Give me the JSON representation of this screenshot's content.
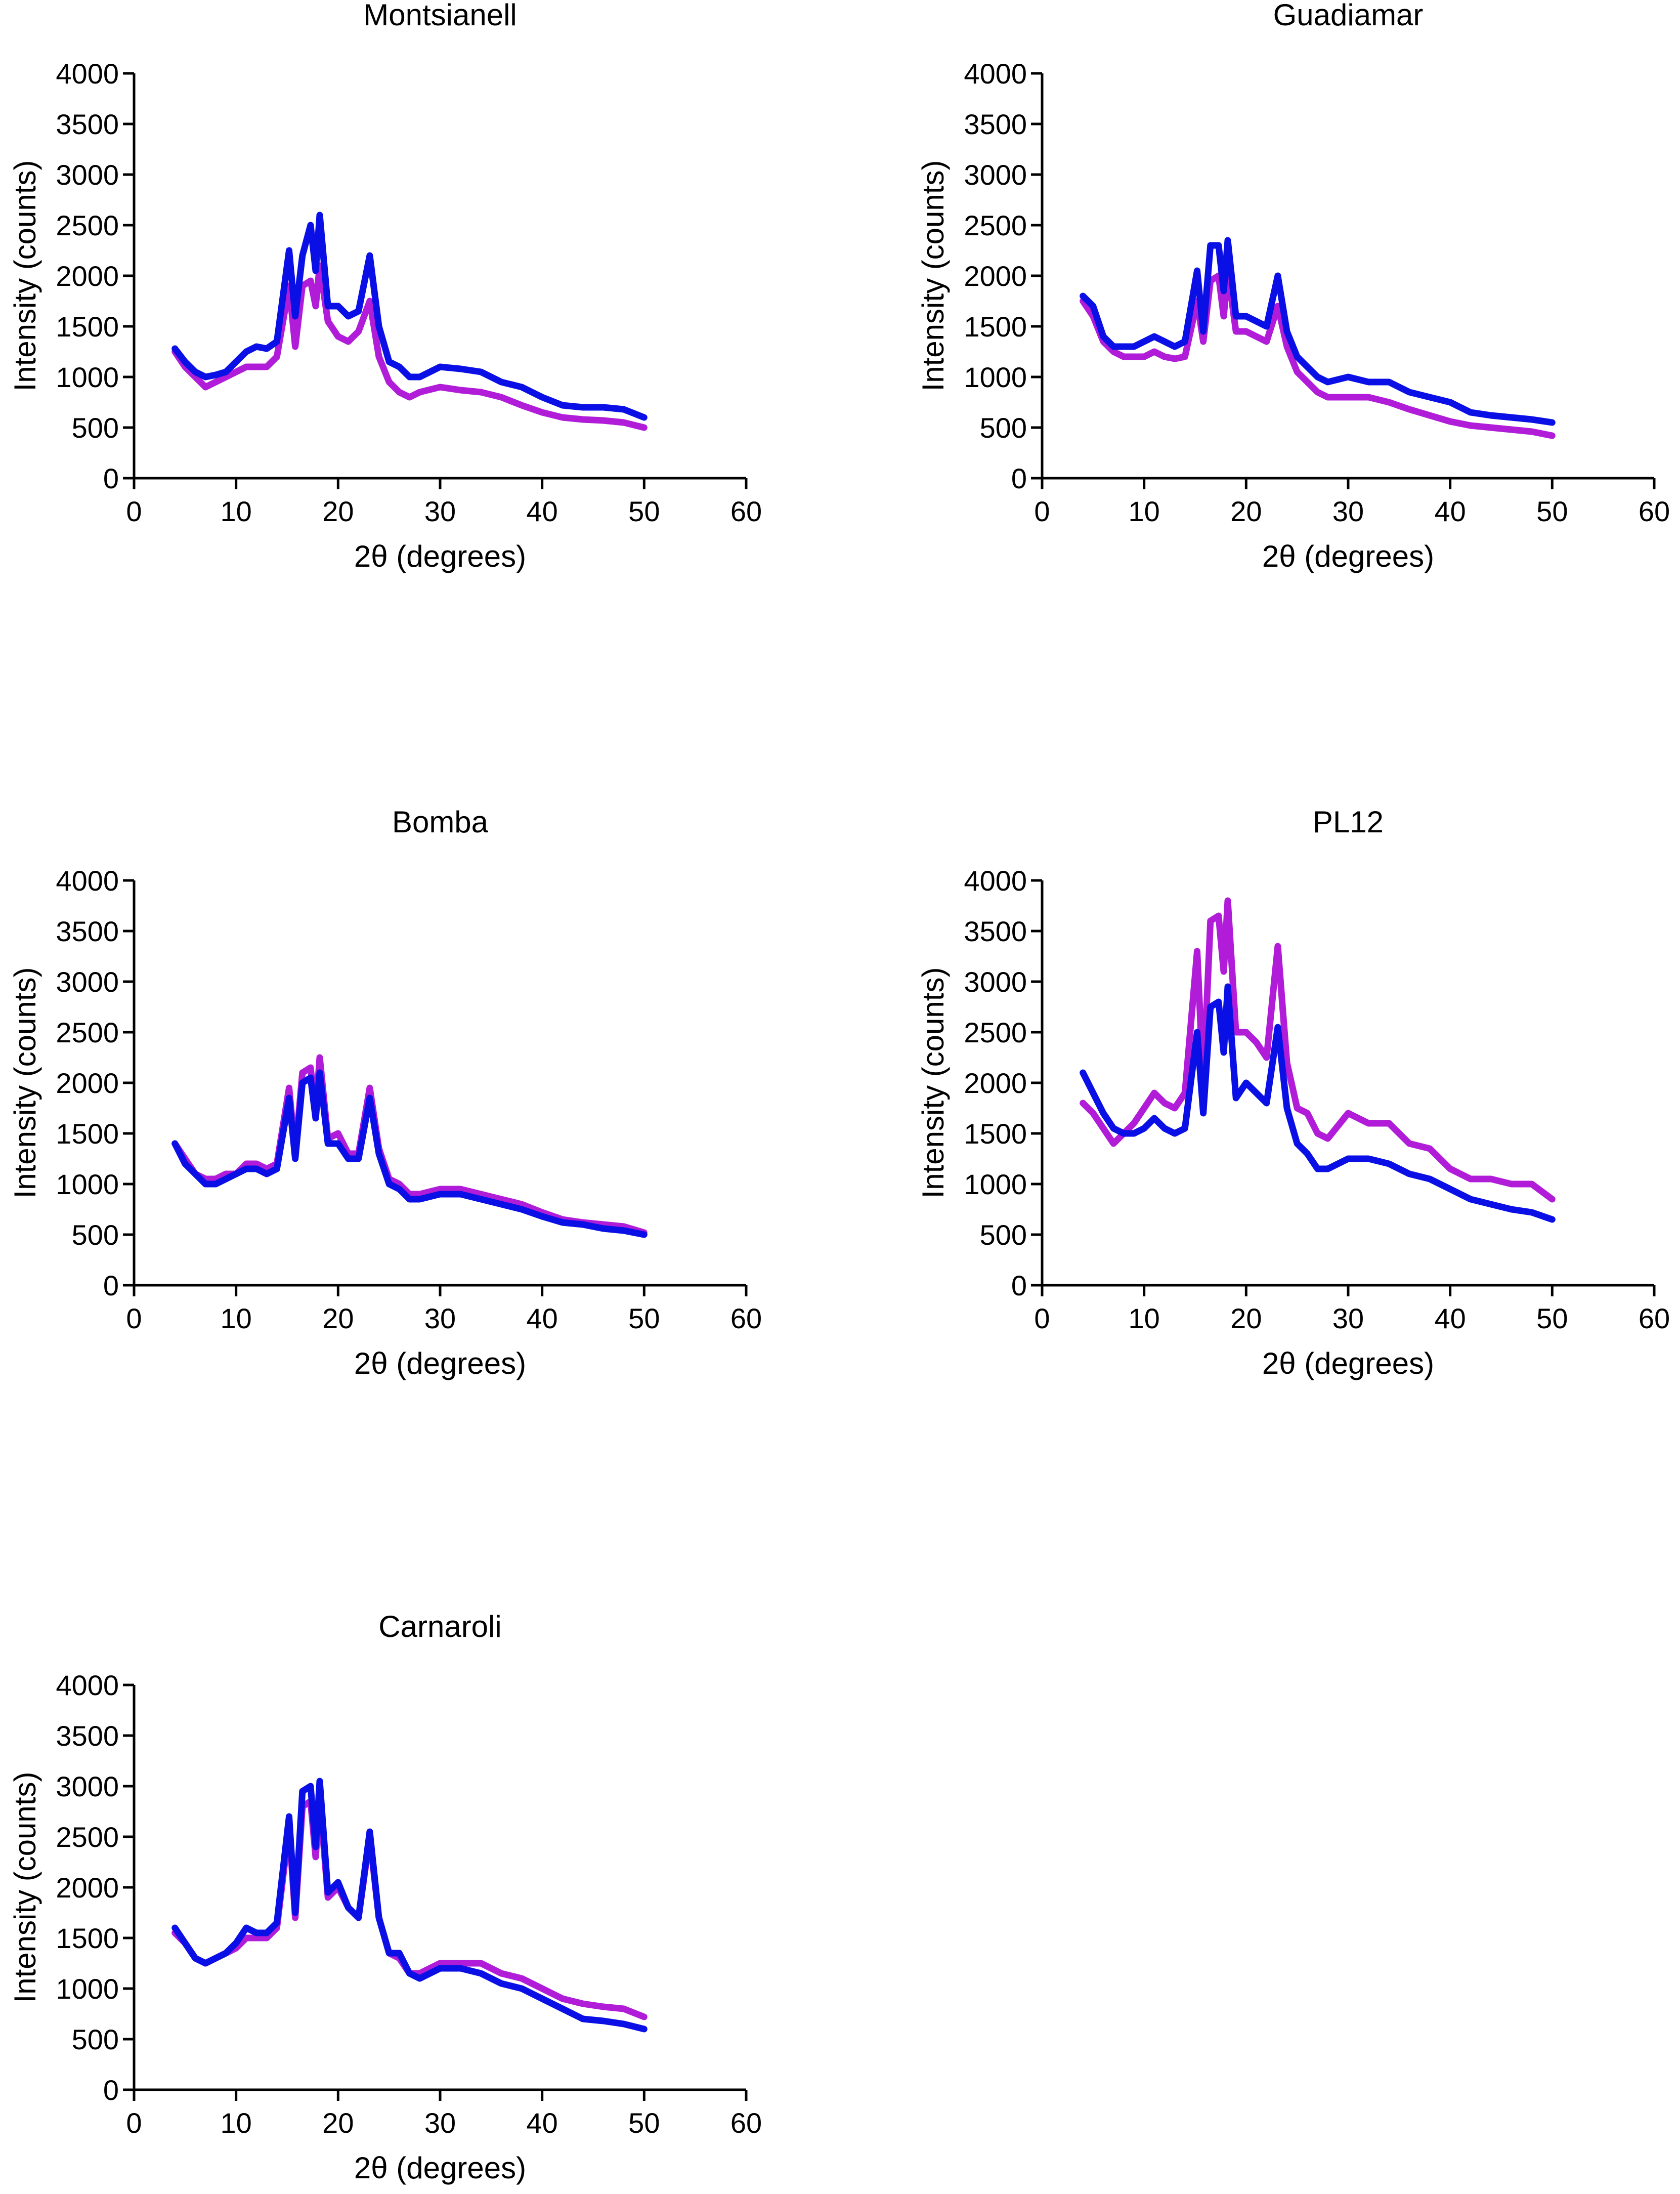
{
  "colors": {
    "purple": "#B01CD8",
    "blue": "#0A0FE6"
  },
  "chart_data": [
    {
      "type": "line",
      "title": "Montsianell",
      "xlabel": "2θ (degrees)",
      "ylabel": "Intensity (counts)",
      "xlim": [
        0,
        60
      ],
      "ylim": [
        0,
        4000
      ],
      "xticks": [
        "0",
        "10",
        "20",
        "30",
        "40",
        "50",
        "60"
      ],
      "yticks": [
        "0",
        "500",
        "1000",
        "1500",
        "2000",
        "2500",
        "3000",
        "3500",
        "4000"
      ],
      "series": [
        {
          "name": "purple",
          "color": "#B01CD8",
          "x": [
            4,
            5,
            6,
            7,
            8,
            9,
            10,
            11,
            12,
            13,
            14,
            15.2,
            15.8,
            16.5,
            17.3,
            17.8,
            18.2,
            19,
            20,
            21,
            22,
            23.1,
            24,
            25,
            26,
            27,
            28,
            30,
            32,
            34,
            36,
            38,
            40,
            42,
            44,
            46,
            48,
            50
          ],
          "y": [
            1250,
            1100,
            1000,
            900,
            950,
            1000,
            1050,
            1100,
            1100,
            1100,
            1200,
            1900,
            1300,
            1900,
            1950,
            1700,
            2100,
            1550,
            1400,
            1350,
            1450,
            1750,
            1200,
            950,
            850,
            800,
            850,
            900,
            870,
            850,
            800,
            720,
            650,
            600,
            580,
            570,
            550,
            500
          ]
        },
        {
          "name": "blue",
          "color": "#0A0FE6",
          "x": [
            4,
            5,
            6,
            7,
            8,
            9,
            10,
            11,
            12,
            13,
            14,
            15.2,
            15.8,
            16.5,
            17.3,
            17.8,
            18.2,
            19,
            20,
            21,
            22,
            23.1,
            24,
            25,
            26,
            27,
            28,
            30,
            32,
            34,
            36,
            38,
            40,
            42,
            44,
            46,
            48,
            50
          ],
          "y": [
            1280,
            1150,
            1050,
            1000,
            1020,
            1050,
            1150,
            1250,
            1300,
            1280,
            1350,
            2250,
            1600,
            2200,
            2500,
            2050,
            2600,
            1700,
            1700,
            1600,
            1650,
            2200,
            1500,
            1150,
            1100,
            1000,
            1000,
            1100,
            1080,
            1050,
            950,
            900,
            800,
            720,
            700,
            700,
            680,
            600
          ]
        }
      ]
    },
    {
      "type": "line",
      "title": "Guadiamar",
      "xlabel": "2θ (degrees)",
      "ylabel": "Intensity (counts)",
      "xlim": [
        0,
        60
      ],
      "ylim": [
        0,
        4000
      ],
      "xticks": [
        "0",
        "10",
        "20",
        "30",
        "40",
        "50",
        "60"
      ],
      "yticks": [
        "0",
        "500",
        "1000",
        "1500",
        "2000",
        "2500",
        "3000",
        "3500",
        "4000"
      ],
      "series": [
        {
          "name": "purple",
          "color": "#B01CD8",
          "x": [
            4,
            5,
            6,
            7,
            8,
            9,
            10,
            11,
            12,
            13,
            14,
            15.2,
            15.8,
            16.5,
            17.3,
            17.8,
            18.2,
            19,
            20,
            21,
            22,
            23.1,
            24,
            25,
            26,
            27,
            28,
            30,
            32,
            34,
            36,
            38,
            40,
            42,
            44,
            46,
            48,
            50
          ],
          "y": [
            1750,
            1600,
            1350,
            1250,
            1200,
            1200,
            1200,
            1250,
            1200,
            1180,
            1200,
            1750,
            1350,
            1950,
            2000,
            1600,
            2050,
            1450,
            1450,
            1400,
            1350,
            1700,
            1300,
            1050,
            950,
            850,
            800,
            800,
            800,
            750,
            680,
            620,
            560,
            520,
            500,
            480,
            460,
            420
          ]
        },
        {
          "name": "blue",
          "color": "#0A0FE6",
          "x": [
            4,
            5,
            6,
            7,
            8,
            9,
            10,
            11,
            12,
            13,
            14,
            15.2,
            15.8,
            16.5,
            17.3,
            17.8,
            18.2,
            19,
            20,
            21,
            22,
            23.1,
            24,
            25,
            26,
            27,
            28,
            30,
            32,
            34,
            36,
            38,
            40,
            42,
            44,
            46,
            48,
            50
          ],
          "y": [
            1800,
            1700,
            1400,
            1300,
            1300,
            1300,
            1350,
            1400,
            1350,
            1300,
            1350,
            2050,
            1450,
            2300,
            2300,
            1850,
            2350,
            1600,
            1600,
            1550,
            1500,
            2000,
            1450,
            1200,
            1100,
            1000,
            950,
            1000,
            950,
            950,
            850,
            800,
            750,
            650,
            620,
            600,
            580,
            550
          ]
        }
      ]
    },
    {
      "type": "line",
      "title": "Bomba",
      "xlabel": "2θ (degrees)",
      "ylabel": "Intensity (counts)",
      "xlim": [
        0,
        60
      ],
      "ylim": [
        0,
        4000
      ],
      "xticks": [
        "0",
        "10",
        "20",
        "30",
        "40",
        "50",
        "60"
      ],
      "yticks": [
        "0",
        "500",
        "1000",
        "1500",
        "2000",
        "2500",
        "3000",
        "3500",
        "4000"
      ],
      "series": [
        {
          "name": "purple",
          "color": "#B01CD8",
          "x": [
            4,
            5,
            6,
            7,
            8,
            9,
            10,
            11,
            12,
            13,
            14,
            15.2,
            15.8,
            16.5,
            17.3,
            17.8,
            18.2,
            19,
            20,
            21,
            22,
            23.1,
            24,
            25,
            26,
            27,
            28,
            30,
            32,
            34,
            36,
            38,
            40,
            42,
            44,
            46,
            48,
            50
          ],
          "y": [
            1400,
            1250,
            1100,
            1050,
            1050,
            1100,
            1100,
            1200,
            1200,
            1150,
            1200,
            1950,
            1300,
            2100,
            2150,
            1700,
            2250,
            1450,
            1500,
            1300,
            1300,
            1950,
            1350,
            1050,
            1000,
            900,
            900,
            950,
            950,
            900,
            850,
            800,
            720,
            650,
            620,
            600,
            580,
            520
          ]
        },
        {
          "name": "blue",
          "color": "#0A0FE6",
          "x": [
            4,
            5,
            6,
            7,
            8,
            9,
            10,
            11,
            12,
            13,
            14,
            15.2,
            15.8,
            16.5,
            17.3,
            17.8,
            18.2,
            19,
            20,
            21,
            22,
            23.1,
            24,
            25,
            26,
            27,
            28,
            30,
            32,
            34,
            36,
            38,
            40,
            42,
            44,
            46,
            48,
            50
          ],
          "y": [
            1400,
            1200,
            1100,
            1000,
            1000,
            1050,
            1100,
            1150,
            1150,
            1100,
            1150,
            1850,
            1250,
            2000,
            2050,
            1650,
            2100,
            1400,
            1400,
            1250,
            1250,
            1850,
            1300,
            1000,
            950,
            850,
            850,
            900,
            900,
            850,
            800,
            750,
            680,
            620,
            600,
            560,
            540,
            500
          ]
        }
      ]
    },
    {
      "type": "line",
      "title": "PL12",
      "xlabel": "2θ (degrees)",
      "ylabel": "Intensity (counts)",
      "xlim": [
        0,
        60
      ],
      "ylim": [
        0,
        4000
      ],
      "xticks": [
        "0",
        "10",
        "20",
        "30",
        "40",
        "50",
        "60"
      ],
      "yticks": [
        "0",
        "500",
        "1000",
        "1500",
        "2000",
        "2500",
        "3000",
        "3500",
        "4000"
      ],
      "series": [
        {
          "name": "purple",
          "color": "#B01CD8",
          "x": [
            4,
            5,
            6,
            7,
            8,
            9,
            10,
            11,
            12,
            13,
            14,
            15.2,
            15.8,
            16.5,
            17.3,
            17.8,
            18.2,
            19,
            20,
            21,
            22,
            23.1,
            24,
            25,
            26,
            27,
            28,
            30,
            32,
            34,
            36,
            38,
            40,
            42,
            44,
            46,
            48,
            50
          ],
          "y": [
            1800,
            1700,
            1550,
            1400,
            1500,
            1600,
            1750,
            1900,
            1800,
            1750,
            1900,
            3300,
            2000,
            3600,
            3650,
            3100,
            3800,
            2500,
            2500,
            2400,
            2250,
            3350,
            2200,
            1750,
            1700,
            1500,
            1450,
            1700,
            1600,
            1600,
            1400,
            1350,
            1150,
            1050,
            1050,
            1000,
            1000,
            850
          ]
        },
        {
          "name": "blue",
          "color": "#0A0FE6",
          "x": [
            4,
            5,
            6,
            7,
            8,
            9,
            10,
            11,
            12,
            13,
            14,
            15.2,
            15.8,
            16.5,
            17.3,
            17.8,
            18.2,
            19,
            20,
            21,
            22,
            23.1,
            24,
            25,
            26,
            27,
            28,
            30,
            32,
            34,
            36,
            38,
            40,
            42,
            44,
            46,
            48,
            50
          ],
          "y": [
            2100,
            1900,
            1700,
            1550,
            1500,
            1500,
            1550,
            1650,
            1550,
            1500,
            1550,
            2500,
            1700,
            2750,
            2800,
            2300,
            2950,
            1850,
            2000,
            1900,
            1800,
            2550,
            1750,
            1400,
            1300,
            1150,
            1150,
            1250,
            1250,
            1200,
            1100,
            1050,
            950,
            850,
            800,
            750,
            720,
            650
          ]
        }
      ]
    },
    {
      "type": "line",
      "title": "Carnaroli",
      "xlabel": "2θ (degrees)",
      "ylabel": "Intensity (counts)",
      "xlim": [
        0,
        60
      ],
      "ylim": [
        0,
        4000
      ],
      "xticks": [
        "0",
        "10",
        "20",
        "30",
        "40",
        "50",
        "60"
      ],
      "yticks": [
        "0",
        "500",
        "1000",
        "1500",
        "2000",
        "2500",
        "3000",
        "3500",
        "4000"
      ],
      "series": [
        {
          "name": "purple",
          "color": "#B01CD8",
          "x": [
            4,
            5,
            6,
            7,
            8,
            9,
            10,
            11,
            12,
            13,
            14,
            15.2,
            15.8,
            16.5,
            17.3,
            17.8,
            18.2,
            19,
            20,
            21,
            22,
            23.1,
            24,
            25,
            26,
            27,
            28,
            30,
            32,
            34,
            36,
            38,
            40,
            42,
            44,
            46,
            48,
            50
          ],
          "y": [
            1550,
            1450,
            1300,
            1250,
            1300,
            1350,
            1400,
            1500,
            1500,
            1500,
            1600,
            2600,
            1700,
            2800,
            2850,
            2300,
            2900,
            1900,
            2000,
            1800,
            1700,
            2500,
            1700,
            1350,
            1300,
            1150,
            1150,
            1250,
            1250,
            1250,
            1150,
            1100,
            1000,
            900,
            850,
            820,
            800,
            720
          ]
        },
        {
          "name": "blue",
          "color": "#0A0FE6",
          "x": [
            4,
            5,
            6,
            7,
            8,
            9,
            10,
            11,
            12,
            13,
            14,
            15.2,
            15.8,
            16.5,
            17.3,
            17.8,
            18.2,
            19,
            20,
            21,
            22,
            23.1,
            24,
            25,
            26,
            27,
            28,
            30,
            32,
            34,
            36,
            38,
            40,
            42,
            44,
            46,
            48,
            50
          ],
          "y": [
            1600,
            1450,
            1300,
            1250,
            1300,
            1350,
            1450,
            1600,
            1550,
            1550,
            1650,
            2700,
            1750,
            2950,
            3000,
            2400,
            3050,
            1950,
            2050,
            1800,
            1700,
            2550,
            1700,
            1350,
            1350,
            1150,
            1100,
            1200,
            1200,
            1150,
            1050,
            1000,
            900,
            800,
            700,
            680,
            650,
            600
          ]
        }
      ]
    }
  ]
}
